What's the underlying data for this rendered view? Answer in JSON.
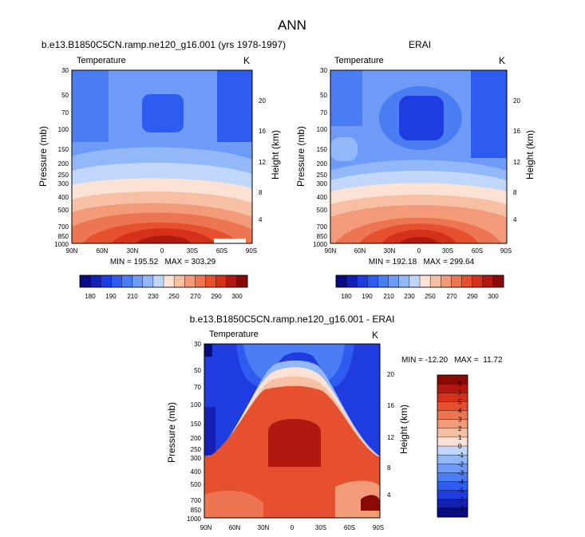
{
  "figure": {
    "title": "ANN"
  },
  "chart_data": [
    {
      "type": "heatmap",
      "title": "b.e13.B1850C5CN.ramp.ne120_g16.001 (yrs 1978-1997)",
      "variable": "Temperature",
      "units": "K",
      "ylabel": "Pressure (mb)",
      "ylabel_right": "Height (km)",
      "x_ticks": [
        "90N",
        "60N",
        "30N",
        "0",
        "30S",
        "60S",
        "90S"
      ],
      "y_ticks": [
        "30",
        "50",
        "70",
        "100",
        "150",
        "200",
        "250",
        "300",
        "400",
        "500",
        "700",
        "850",
        "1000"
      ],
      "y_ticks_right": [
        "20",
        "16",
        "12",
        "8",
        "4"
      ],
      "stats": "MIN = 195.52   MAX = 303.29",
      "min": 195.52,
      "max": 303.29,
      "colorbar": {
        "orientation": "horizontal",
        "labels": [
          "180",
          "190",
          "210",
          "230",
          "250",
          "270",
          "290",
          "300"
        ],
        "levels": [
          180,
          185,
          190,
          200,
          210,
          220,
          230,
          240,
          250,
          260,
          270,
          280,
          290,
          295,
          300
        ]
      }
    },
    {
      "type": "heatmap",
      "title": "ERAI",
      "variable": "Temperature",
      "units": "K",
      "ylabel": "Pressure (mb)",
      "ylabel_right": "Height (km)",
      "x_ticks": [
        "90N",
        "60N",
        "30N",
        "0",
        "30S",
        "60S",
        "90S"
      ],
      "y_ticks": [
        "30",
        "50",
        "70",
        "100",
        "150",
        "200",
        "250",
        "300",
        "400",
        "500",
        "700",
        "850",
        "1000"
      ],
      "y_ticks_right": [
        "20",
        "16",
        "12",
        "8",
        "4"
      ],
      "stats": "MIN = 192.18   MAX = 299.64",
      "min": 192.18,
      "max": 299.64,
      "colorbar": {
        "orientation": "horizontal",
        "labels": [
          "180",
          "190",
          "210",
          "230",
          "250",
          "270",
          "290",
          "300"
        ],
        "levels": [
          180,
          185,
          190,
          200,
          210,
          220,
          230,
          240,
          250,
          260,
          270,
          280,
          290,
          295,
          300
        ]
      }
    },
    {
      "type": "heatmap",
      "title": "b.e13.B1850C5CN.ramp.ne120_g16.001 - ERAI",
      "variable": "Temperature",
      "units": "K",
      "ylabel": "Pressure (mb)",
      "ylabel_right": "Height (km)",
      "x_ticks": [
        "90N",
        "60N",
        "30N",
        "0",
        "30S",
        "60S",
        "90S"
      ],
      "y_ticks": [
        "30",
        "50",
        "70",
        "100",
        "150",
        "200",
        "250",
        "300",
        "400",
        "500",
        "700",
        "850",
        "1000"
      ],
      "y_ticks_right": [
        "20",
        "16",
        "12",
        "8",
        "4"
      ],
      "stats": "MIN = -12.20   MAX =  11.72",
      "min": -12.2,
      "max": 11.72,
      "colorbar": {
        "orientation": "vertical",
        "labels": [
          "9",
          "7",
          "5",
          "4",
          "3",
          "2",
          "1",
          "0",
          "-1",
          "-2",
          "-3",
          "-4",
          "-5",
          "-7",
          "-9"
        ],
        "levels": [
          9,
          7,
          5,
          4,
          3,
          2,
          1,
          0,
          -1,
          -2,
          -3,
          -4,
          -5,
          -7,
          -9
        ]
      }
    }
  ],
  "palette": {
    "blue_red_16": [
      "#0a0a80",
      "#1420b4",
      "#1e3ce0",
      "#2e5cf0",
      "#4a7df4",
      "#6d9bf7",
      "#93b8f9",
      "#c0d6fb",
      "#fbe2d4",
      "#f7c0a4",
      "#f39a78",
      "#ee7552",
      "#e6502e",
      "#d4301a",
      "#b01810",
      "#8a0806"
    ]
  }
}
